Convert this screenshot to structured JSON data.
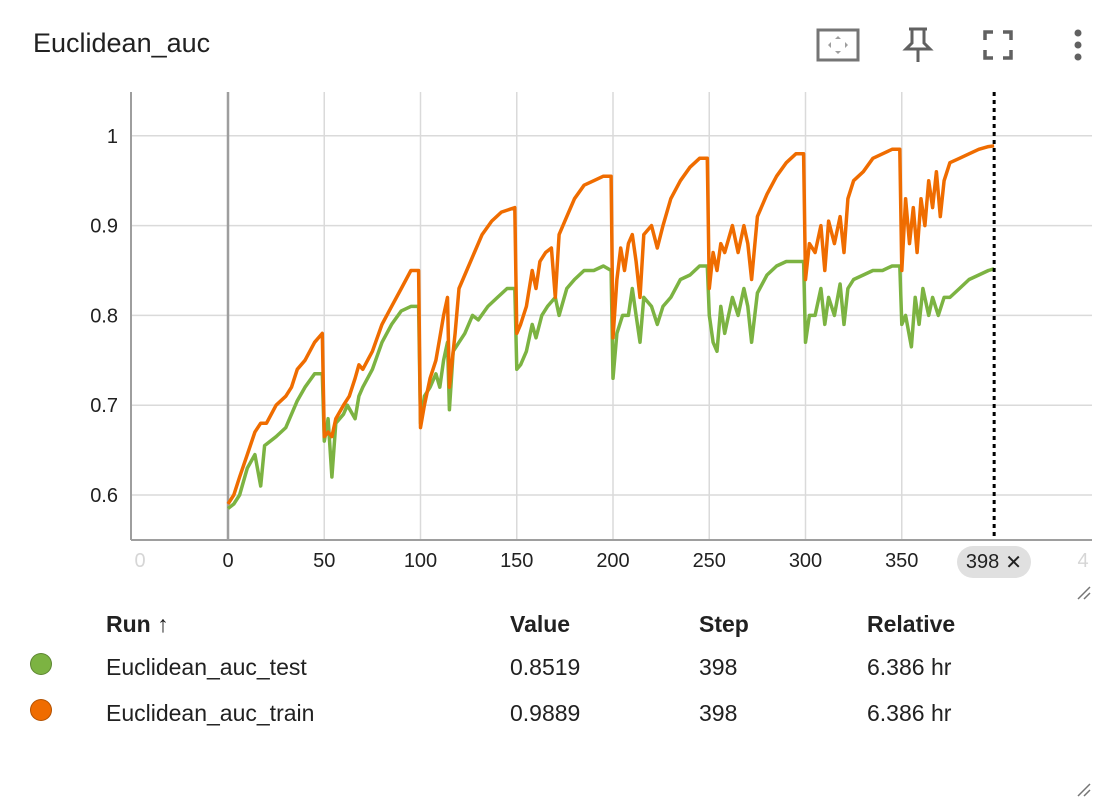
{
  "card": {
    "title": "Euclidean_auc",
    "icons": [
      "fit-to-data-icon",
      "pin-icon",
      "fullscreen-icon",
      "more-vert-icon"
    ]
  },
  "chart_data": {
    "type": "line",
    "x_ticks": [
      "0",
      "0",
      "50",
      "100",
      "150",
      "200",
      "250",
      "300",
      "350",
      "4"
    ],
    "y_ticks": [
      "1",
      "0.9",
      "0.8",
      "0.7",
      "0.6"
    ],
    "xlim": [
      -50,
      450
    ],
    "ylim": [
      0.55,
      1.05
    ],
    "step_marker": {
      "step": 398,
      "label": "398"
    },
    "series": [
      {
        "name": "Euclidean_auc_test",
        "color": "#7cb342",
        "points": [
          [
            0,
            0.585
          ],
          [
            3,
            0.59
          ],
          [
            6,
            0.6
          ],
          [
            10,
            0.63
          ],
          [
            14,
            0.645
          ],
          [
            17,
            0.61
          ],
          [
            19,
            0.655
          ],
          [
            25,
            0.665
          ],
          [
            30,
            0.675
          ],
          [
            33,
            0.69
          ],
          [
            36,
            0.705
          ],
          [
            40,
            0.72
          ],
          [
            45,
            0.735
          ],
          [
            49,
            0.735
          ],
          [
            50,
            0.66
          ],
          [
            52,
            0.685
          ],
          [
            54,
            0.62
          ],
          [
            56,
            0.68
          ],
          [
            60,
            0.69
          ],
          [
            62,
            0.7
          ],
          [
            66,
            0.685
          ],
          [
            68,
            0.71
          ],
          [
            70,
            0.72
          ],
          [
            75,
            0.74
          ],
          [
            80,
            0.77
          ],
          [
            85,
            0.79
          ],
          [
            90,
            0.805
          ],
          [
            95,
            0.81
          ],
          [
            99,
            0.81
          ],
          [
            100,
            0.68
          ],
          [
            102,
            0.71
          ],
          [
            105,
            0.72
          ],
          [
            108,
            0.735
          ],
          [
            110,
            0.72
          ],
          [
            112,
            0.75
          ],
          [
            114,
            0.77
          ],
          [
            115,
            0.695
          ],
          [
            117,
            0.76
          ],
          [
            120,
            0.77
          ],
          [
            123,
            0.78
          ],
          [
            127,
            0.8
          ],
          [
            130,
            0.795
          ],
          [
            135,
            0.81
          ],
          [
            140,
            0.82
          ],
          [
            145,
            0.83
          ],
          [
            149,
            0.83
          ],
          [
            150,
            0.74
          ],
          [
            152,
            0.745
          ],
          [
            155,
            0.76
          ],
          [
            158,
            0.79
          ],
          [
            160,
            0.775
          ],
          [
            163,
            0.8
          ],
          [
            166,
            0.81
          ],
          [
            170,
            0.82
          ],
          [
            172,
            0.8
          ],
          [
            176,
            0.83
          ],
          [
            180,
            0.84
          ],
          [
            185,
            0.85
          ],
          [
            190,
            0.85
          ],
          [
            195,
            0.855
          ],
          [
            199,
            0.85
          ],
          [
            200,
            0.73
          ],
          [
            202,
            0.78
          ],
          [
            205,
            0.8
          ],
          [
            208,
            0.8
          ],
          [
            210,
            0.83
          ],
          [
            212,
            0.8
          ],
          [
            214,
            0.77
          ],
          [
            216,
            0.82
          ],
          [
            220,
            0.81
          ],
          [
            223,
            0.79
          ],
          [
            226,
            0.81
          ],
          [
            230,
            0.82
          ],
          [
            235,
            0.84
          ],
          [
            240,
            0.845
          ],
          [
            245,
            0.855
          ],
          [
            249,
            0.855
          ],
          [
            250,
            0.8
          ],
          [
            252,
            0.77
          ],
          [
            254,
            0.76
          ],
          [
            256,
            0.81
          ],
          [
            258,
            0.78
          ],
          [
            262,
            0.82
          ],
          [
            265,
            0.8
          ],
          [
            268,
            0.83
          ],
          [
            270,
            0.81
          ],
          [
            272,
            0.77
          ],
          [
            275,
            0.825
          ],
          [
            280,
            0.845
          ],
          [
            285,
            0.855
          ],
          [
            290,
            0.86
          ],
          [
            295,
            0.86
          ],
          [
            299,
            0.86
          ],
          [
            300,
            0.77
          ],
          [
            302,
            0.8
          ],
          [
            305,
            0.8
          ],
          [
            308,
            0.83
          ],
          [
            310,
            0.79
          ],
          [
            312,
            0.82
          ],
          [
            315,
            0.8
          ],
          [
            318,
            0.835
          ],
          [
            320,
            0.79
          ],
          [
            322,
            0.83
          ],
          [
            325,
            0.84
          ],
          [
            330,
            0.845
          ],
          [
            335,
            0.85
          ],
          [
            340,
            0.85
          ],
          [
            345,
            0.855
          ],
          [
            349,
            0.855
          ],
          [
            350,
            0.79
          ],
          [
            352,
            0.8
          ],
          [
            355,
            0.765
          ],
          [
            357,
            0.82
          ],
          [
            359,
            0.79
          ],
          [
            361,
            0.83
          ],
          [
            364,
            0.8
          ],
          [
            366,
            0.82
          ],
          [
            369,
            0.8
          ],
          [
            372,
            0.82
          ],
          [
            375,
            0.82
          ],
          [
            380,
            0.83
          ],
          [
            385,
            0.84
          ],
          [
            390,
            0.845
          ],
          [
            395,
            0.85
          ],
          [
            398,
            0.8519
          ]
        ]
      },
      {
        "name": "Euclidean_auc_train",
        "color": "#ef6c00",
        "points": [
          [
            0,
            0.59
          ],
          [
            3,
            0.6
          ],
          [
            6,
            0.62
          ],
          [
            10,
            0.645
          ],
          [
            14,
            0.67
          ],
          [
            17,
            0.68
          ],
          [
            20,
            0.68
          ],
          [
            25,
            0.7
          ],
          [
            30,
            0.71
          ],
          [
            33,
            0.72
          ],
          [
            36,
            0.74
          ],
          [
            40,
            0.75
          ],
          [
            45,
            0.77
          ],
          [
            49,
            0.78
          ],
          [
            50,
            0.665
          ],
          [
            52,
            0.67
          ],
          [
            54,
            0.665
          ],
          [
            56,
            0.685
          ],
          [
            60,
            0.7
          ],
          [
            63,
            0.71
          ],
          [
            66,
            0.73
          ],
          [
            68,
            0.745
          ],
          [
            70,
            0.74
          ],
          [
            75,
            0.76
          ],
          [
            80,
            0.79
          ],
          [
            85,
            0.81
          ],
          [
            90,
            0.83
          ],
          [
            95,
            0.85
          ],
          [
            99,
            0.85
          ],
          [
            100,
            0.675
          ],
          [
            102,
            0.7
          ],
          [
            105,
            0.73
          ],
          [
            108,
            0.75
          ],
          [
            110,
            0.775
          ],
          [
            112,
            0.8
          ],
          [
            114,
            0.82
          ],
          [
            115,
            0.72
          ],
          [
            118,
            0.78
          ],
          [
            120,
            0.83
          ],
          [
            124,
            0.85
          ],
          [
            128,
            0.87
          ],
          [
            132,
            0.89
          ],
          [
            137,
            0.905
          ],
          [
            142,
            0.915
          ],
          [
            149,
            0.92
          ],
          [
            150,
            0.78
          ],
          [
            152,
            0.79
          ],
          [
            155,
            0.81
          ],
          [
            158,
            0.85
          ],
          [
            160,
            0.83
          ],
          [
            162,
            0.86
          ],
          [
            165,
            0.87
          ],
          [
            168,
            0.875
          ],
          [
            170,
            0.82
          ],
          [
            172,
            0.89
          ],
          [
            176,
            0.91
          ],
          [
            180,
            0.93
          ],
          [
            185,
            0.945
          ],
          [
            190,
            0.95
          ],
          [
            195,
            0.955
          ],
          [
            199,
            0.955
          ],
          [
            200,
            0.775
          ],
          [
            202,
            0.84
          ],
          [
            204,
            0.875
          ],
          [
            206,
            0.85
          ],
          [
            208,
            0.88
          ],
          [
            210,
            0.89
          ],
          [
            212,
            0.86
          ],
          [
            214,
            0.82
          ],
          [
            216,
            0.89
          ],
          [
            220,
            0.9
          ],
          [
            223,
            0.875
          ],
          [
            226,
            0.9
          ],
          [
            230,
            0.93
          ],
          [
            235,
            0.95
          ],
          [
            240,
            0.965
          ],
          [
            245,
            0.975
          ],
          [
            249,
            0.975
          ],
          [
            250,
            0.83
          ],
          [
            252,
            0.87
          ],
          [
            254,
            0.85
          ],
          [
            256,
            0.88
          ],
          [
            258,
            0.87
          ],
          [
            262,
            0.9
          ],
          [
            265,
            0.87
          ],
          [
            268,
            0.9
          ],
          [
            270,
            0.88
          ],
          [
            272,
            0.84
          ],
          [
            275,
            0.91
          ],
          [
            280,
            0.935
          ],
          [
            285,
            0.955
          ],
          [
            290,
            0.97
          ],
          [
            295,
            0.98
          ],
          [
            299,
            0.98
          ],
          [
            300,
            0.84
          ],
          [
            302,
            0.88
          ],
          [
            305,
            0.87
          ],
          [
            308,
            0.9
          ],
          [
            310,
            0.85
          ],
          [
            312,
            0.905
          ],
          [
            315,
            0.88
          ],
          [
            318,
            0.91
          ],
          [
            320,
            0.87
          ],
          [
            322,
            0.93
          ],
          [
            325,
            0.95
          ],
          [
            330,
            0.96
          ],
          [
            335,
            0.975
          ],
          [
            340,
            0.98
          ],
          [
            345,
            0.985
          ],
          [
            349,
            0.985
          ],
          [
            350,
            0.85
          ],
          [
            352,
            0.93
          ],
          [
            354,
            0.88
          ],
          [
            356,
            0.92
          ],
          [
            358,
            0.87
          ],
          [
            360,
            0.93
          ],
          [
            362,
            0.9
          ],
          [
            364,
            0.95
          ],
          [
            366,
            0.92
          ],
          [
            368,
            0.96
          ],
          [
            370,
            0.91
          ],
          [
            372,
            0.95
          ],
          [
            375,
            0.97
          ],
          [
            380,
            0.975
          ],
          [
            385,
            0.98
          ],
          [
            390,
            0.985
          ],
          [
            395,
            0.988
          ],
          [
            398,
            0.9889
          ]
        ]
      }
    ]
  },
  "table": {
    "headers": {
      "run": "Run",
      "sort_arrow": "↑",
      "value": "Value",
      "step": "Step",
      "relative": "Relative"
    },
    "rows": [
      {
        "color": "#7cb342",
        "run": "Euclidean_auc_test",
        "value": "0.8519",
        "step": "398",
        "relative": "6.386 hr"
      },
      {
        "color": "#ef6c00",
        "run": "Euclidean_auc_train",
        "value": "0.9889",
        "step": "398",
        "relative": "6.386 hr"
      }
    ]
  }
}
